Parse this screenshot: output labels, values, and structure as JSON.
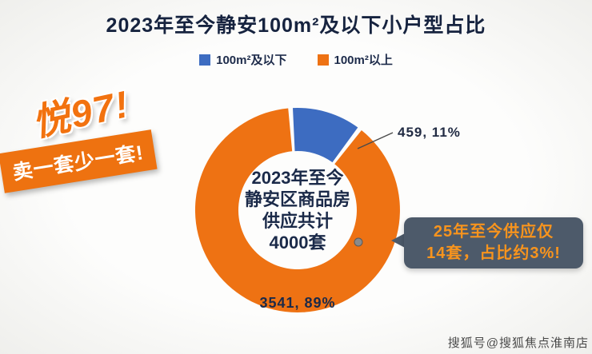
{
  "chart_data": {
    "type": "pie",
    "donut": true,
    "title": "2023年至今静安100m²及以下小户型占比",
    "legend_position": "top",
    "total": 4000,
    "slices": [
      {
        "name": "100m²及以下",
        "value": 459,
        "percent": 11,
        "color": "#3d6cc1",
        "data_label": "459, 11%"
      },
      {
        "name": "100m²以上",
        "value": 3541,
        "percent": 89,
        "color": "#ee7213",
        "data_label": "3541, 89%"
      }
    ],
    "center_lines": [
      "2023年至今",
      "静安区商品房",
      "供应共计",
      "4000套"
    ]
  },
  "stickers": {
    "headline": "悦97!",
    "banner": "卖一套少一套!"
  },
  "callout": {
    "lines": [
      "25年至今供应仅",
      "14套，占比约3%!"
    ]
  },
  "watermark": "搜狐号@搜狐焦点淮南店"
}
